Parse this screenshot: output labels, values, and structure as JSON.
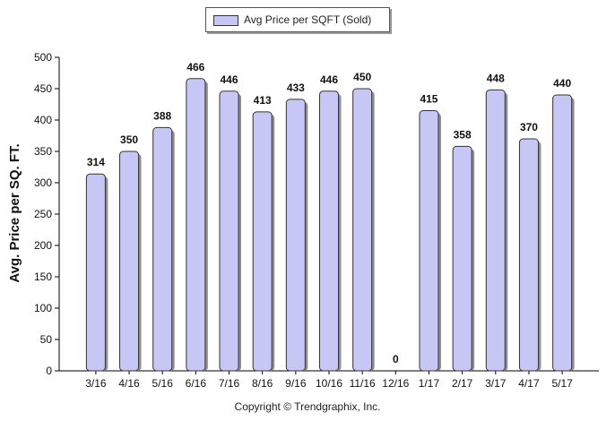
{
  "chart_data": {
    "type": "bar",
    "categories": [
      "3/16",
      "4/16",
      "5/16",
      "6/16",
      "7/16",
      "8/16",
      "9/16",
      "10/16",
      "11/16",
      "12/16",
      "1/17",
      "2/17",
      "3/17",
      "4/17",
      "5/17"
    ],
    "series": [
      {
        "name": "Avg Price per SQFT (Sold)",
        "values": [
          314,
          350,
          388,
          466,
          446,
          413,
          433,
          446,
          450,
          0,
          415,
          358,
          448,
          370,
          440
        ]
      }
    ],
    "data_labels": [
      "314",
      "350",
      "388",
      "466",
      "446",
      "413",
      "433",
      "446",
      "450",
      "0",
      "415",
      "358",
      "448",
      "370",
      "440"
    ],
    "ylabel": "Avg. Price per SQ. FT.",
    "xlabel": "",
    "ylim": [
      0,
      500
    ],
    "yticks": [
      0,
      50,
      100,
      150,
      200,
      250,
      300,
      350,
      400,
      450,
      500
    ],
    "ytick_labels": [
      "0",
      "50",
      "100",
      "150",
      "200",
      "250",
      "300",
      "350",
      "400",
      "450",
      "500"
    ],
    "grid": false,
    "legend_position": "top-center",
    "bar_color": "#c7c7f5",
    "bar_stroke": "#333333"
  },
  "legend": {
    "label": "Avg Price per SQFT (Sold)"
  },
  "footer": {
    "copyright": "Copyright © Trendgraphix, Inc."
  }
}
